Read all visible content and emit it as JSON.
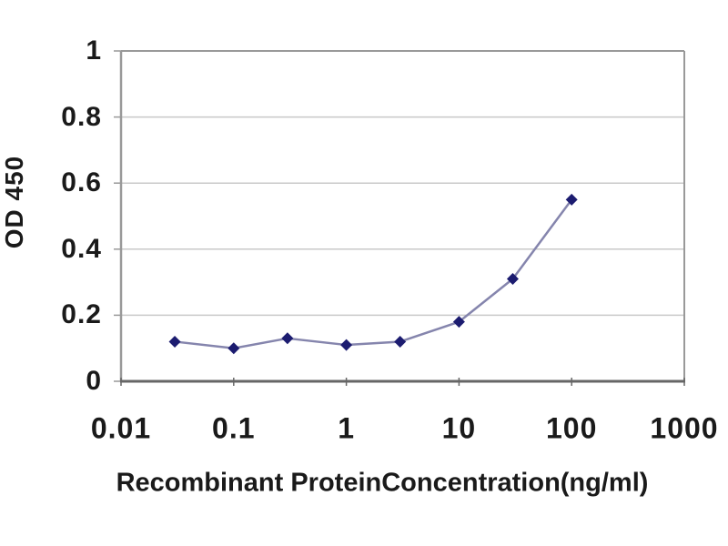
{
  "chart_data": {
    "type": "line",
    "title": "",
    "xlabel": "Recombinant ProteinConcentration(ng/ml)",
    "ylabel": "OD 450",
    "x_scale": "log",
    "y_scale": "linear",
    "xlim": [
      0.01,
      1000
    ],
    "ylim": [
      0,
      1
    ],
    "x_ticks": [
      "0.01",
      "0.1",
      "1",
      "10",
      "100",
      "1000"
    ],
    "y_ticks": [
      "1",
      "0.8",
      "0.6",
      "0.4",
      "0.2",
      "0"
    ],
    "grid": "horizontal",
    "legend_position": "none",
    "series": [
      {
        "name": "OD 450",
        "marker": "diamond",
        "x": [
          0.03,
          0.1,
          0.3,
          1,
          3,
          10,
          30,
          100
        ],
        "y": [
          0.12,
          0.1,
          0.13,
          0.11,
          0.12,
          0.18,
          0.31,
          0.55
        ]
      }
    ],
    "colors": {
      "line": "#8585ad",
      "marker": "#1c1c70",
      "grid": "#c9c9c9",
      "frame": "#999999",
      "axis": "#666666",
      "text": "#1a1a1a",
      "background": "#ffffff"
    }
  }
}
